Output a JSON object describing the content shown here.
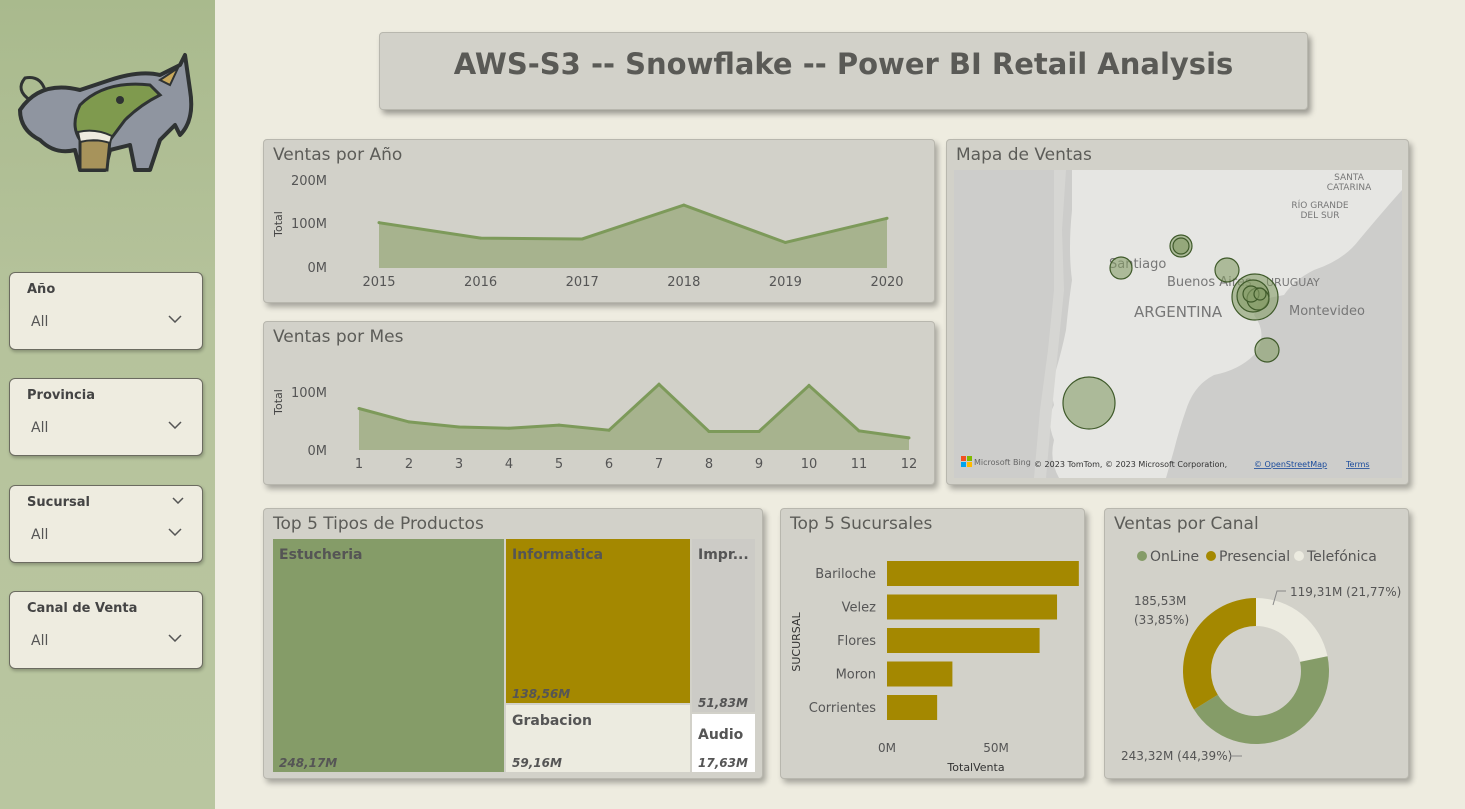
{
  "colors": {
    "online": "#859c68",
    "presencial": "#a48800",
    "telefonica": "#ecebe0",
    "impresion": "#cccbc6",
    "area_fill": "#a7b38e",
    "area_line": "#7d9a5a"
  },
  "header": {
    "title": "AWS-S3 -- Snowflake -- Power BI Retail Analysis"
  },
  "sidebar": {
    "logo_icon": "rhino-logo-icon",
    "slicers": [
      {
        "label": "Año",
        "value": "All"
      },
      {
        "label": "Provincia",
        "value": "All"
      },
      {
        "label": "Sucursal",
        "value": "All"
      },
      {
        "label": "Canal de Venta",
        "value": "All"
      }
    ]
  },
  "ventas_anio": {
    "title": "Ventas por Año",
    "ylabel": "Total",
    "y_ticks": [
      "0M",
      "100M",
      "200M"
    ]
  },
  "ventas_mes": {
    "title": "Ventas por Mes",
    "ylabel": "Total",
    "y_ticks": [
      "0M",
      "100M"
    ]
  },
  "mapa": {
    "title": "Mapa de Ventas",
    "labels": [
      "SANTA CATARINA",
      "RIO GRANDE DO SUL",
      "Santiago",
      "Buenos Aires",
      "URUGUAY",
      "ARGENTINA",
      "Montevideo"
    ],
    "attribution_logo": "Microsoft Bing",
    "attribution": "© 2023 TomTom, © 2023 Microsoft Corporation,",
    "attribution_link": "© OpenStreetMap",
    "terms": "Terms"
  },
  "top_productos": {
    "title": "Top 5 Tipos de Productos"
  },
  "top_sucursales": {
    "title": "Top 5 Sucursales"
  },
  "ventas_canal": {
    "title": "Ventas por Canal"
  },
  "chart_data": [
    {
      "type": "area",
      "title": "Ventas por Año",
      "x": [
        "2015",
        "2016",
        "2017",
        "2018",
        "2019",
        "2020"
      ],
      "values": [
        103,
        68,
        66,
        143,
        58,
        113
      ],
      "ylabel": "Total",
      "ylim": [
        0,
        200
      ],
      "unit": "M"
    },
    {
      "type": "area",
      "title": "Ventas por Mes",
      "x": [
        "1",
        "2",
        "3",
        "4",
        "5",
        "6",
        "7",
        "8",
        "9",
        "10",
        "11",
        "12"
      ],
      "values": [
        65,
        44,
        36,
        34,
        39,
        31,
        103,
        29,
        29,
        101,
        30,
        19
      ],
      "ylabel": "Total",
      "ylim": [
        0,
        130
      ],
      "unit": "M"
    },
    {
      "type": "treemap",
      "title": "Top 5 Tipos de Productos",
      "categories": [
        "Estucheria",
        "Informatica",
        "Grabacion",
        "Impr...",
        "Audio"
      ],
      "values": [
        248.17,
        138.56,
        59.16,
        51.83,
        17.63
      ],
      "value_labels": [
        "248,17M",
        "138,56M",
        "59,16M",
        "51,83M",
        "17,63M"
      ]
    },
    {
      "type": "bar",
      "title": "Top 5 Sucursales",
      "categories": [
        "Bariloche",
        "Velez",
        "Flores",
        "Moron",
        "Corrientes"
      ],
      "values": [
        88,
        78,
        70,
        30,
        23
      ],
      "xlabel": "TotalVenta",
      "ylabel": "SUCURSAL",
      "x_ticks": [
        "0M",
        "50M"
      ],
      "xlim": [
        0,
        100
      ]
    },
    {
      "type": "pie",
      "title": "Ventas por Canal",
      "categories": [
        "OnLine",
        "Presencial",
        "Telefónica"
      ],
      "values": [
        243.32,
        185.53,
        119.31
      ],
      "labels": [
        "243,32M (44,39%)",
        "185,53M (33,85%)",
        "119,31M (21,77%)"
      ],
      "label_lines": [
        [
          "243,32M (44,39%)"
        ],
        [
          "185,53M",
          "(33,85%)"
        ],
        [
          "119,31M (21,77%)"
        ]
      ],
      "legend": "top"
    }
  ]
}
